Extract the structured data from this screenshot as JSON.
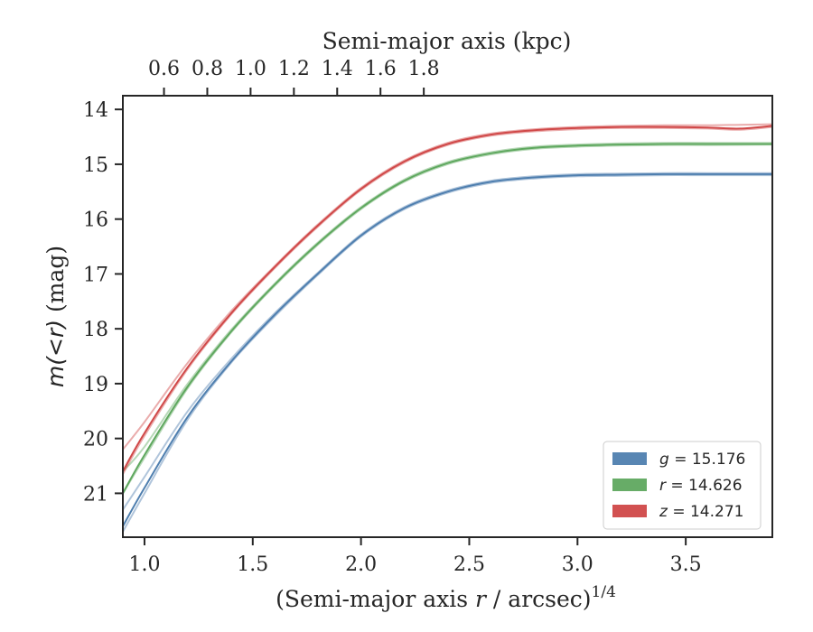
{
  "chart_data": {
    "type": "line",
    "title": "",
    "xlabel": "(Semi-major axis r / arcsec)^1/4",
    "xlabel_parts": {
      "prefix": "(Semi-major axis ",
      "var": "r",
      "suffix": " / arcsec)",
      "sup": "1/4"
    },
    "ylabel": "m(<r) (mag)",
    "ylabel_parts": {
      "math": "m(<r)",
      "unit": " (mag)"
    },
    "x2label": "Semi-major axis (kpc)",
    "xlim": [
      0.9,
      3.9
    ],
    "ylim": [
      21.8,
      13.75
    ],
    "y_inverted": true,
    "x2_ticks": [
      0.6,
      0.8,
      1.0,
      1.2,
      1.4,
      1.6,
      1.8
    ],
    "x2_tick_labels": [
      "0.6",
      "0.8",
      "1.0",
      "1.2",
      "1.4",
      "1.6",
      "1.8"
    ],
    "x2_to_x": [
      [
        0.6,
        1.09
      ],
      [
        0.8,
        1.29
      ],
      [
        1.0,
        1.49
      ],
      [
        1.2,
        1.69
      ],
      [
        1.4,
        1.89
      ],
      [
        1.6,
        2.09
      ],
      [
        1.8,
        2.29
      ]
    ],
    "x_ticks": [
      1.0,
      1.5,
      2.0,
      2.5,
      3.0,
      3.5
    ],
    "x_tick_labels": [
      "1.0",
      "1.5",
      "2.0",
      "2.5",
      "3.0",
      "3.5"
    ],
    "y_ticks": [
      14,
      15,
      16,
      17,
      18,
      19,
      20,
      21
    ],
    "y_tick_labels": [
      "14",
      "15",
      "16",
      "17",
      "18",
      "19",
      "20",
      "21"
    ],
    "grid": false,
    "legend_position": "lower-right",
    "series": [
      {
        "name": "g = 15.176",
        "legend": {
          "var": "g",
          "value": "15.176"
        },
        "color": "#4f7faf",
        "x": [
          0.9,
          1.0,
          1.2,
          1.4,
          1.6,
          1.8,
          2.0,
          2.2,
          2.4,
          2.6,
          2.8,
          3.0,
          3.2,
          3.4,
          3.6,
          3.9
        ],
        "y": [
          21.6,
          20.9,
          19.6,
          18.6,
          17.75,
          17.0,
          16.3,
          15.8,
          15.5,
          15.32,
          15.24,
          15.2,
          15.19,
          15.18,
          15.18,
          15.18
        ],
        "y_lower": [
          21.7,
          21.0,
          19.65,
          18.62,
          17.78,
          17.02,
          16.32,
          15.82,
          15.52,
          15.34,
          15.26,
          15.22,
          15.21,
          15.2,
          15.2,
          15.2
        ],
        "y_upper": [
          21.3,
          20.7,
          19.5,
          18.55,
          17.72,
          16.98,
          16.28,
          15.78,
          15.48,
          15.3,
          15.22,
          15.18,
          15.17,
          15.16,
          15.16,
          15.16
        ]
      },
      {
        "name": "r = 14.626",
        "legend": {
          "var": "r",
          "value": "14.626"
        },
        "color": "#5fa85f",
        "x": [
          0.9,
          1.0,
          1.2,
          1.4,
          1.6,
          1.8,
          2.0,
          2.2,
          2.4,
          2.6,
          2.8,
          3.0,
          3.2,
          3.4,
          3.6,
          3.9
        ],
        "y": [
          21.0,
          20.3,
          19.05,
          18.05,
          17.2,
          16.45,
          15.8,
          15.3,
          14.98,
          14.8,
          14.7,
          14.66,
          14.64,
          14.63,
          14.63,
          14.63
        ],
        "y_lower": [
          21.0,
          20.35,
          19.08,
          18.07,
          17.22,
          16.47,
          15.82,
          15.32,
          15.0,
          14.82,
          14.72,
          14.68,
          14.66,
          14.65,
          14.65,
          14.64
        ],
        "y_upper": [
          20.6,
          20.15,
          19.0,
          18.02,
          17.18,
          16.43,
          15.78,
          15.28,
          14.96,
          14.78,
          14.68,
          14.64,
          14.62,
          14.61,
          14.61,
          14.61
        ]
      },
      {
        "name": "z = 14.271",
        "legend": {
          "var": "z",
          "value": "14.271"
        },
        "color": "#d04848",
        "x": [
          0.9,
          1.0,
          1.2,
          1.4,
          1.6,
          1.8,
          2.0,
          2.2,
          2.4,
          2.6,
          2.8,
          3.0,
          3.2,
          3.4,
          3.6,
          3.75,
          3.9
        ],
        "y": [
          20.6,
          19.9,
          18.7,
          17.72,
          16.88,
          16.12,
          15.45,
          14.95,
          14.63,
          14.46,
          14.38,
          14.34,
          14.32,
          14.32,
          14.33,
          14.35,
          14.3
        ],
        "y_lower": [
          20.65,
          19.95,
          18.73,
          17.74,
          16.9,
          16.14,
          15.47,
          14.97,
          14.65,
          14.48,
          14.4,
          14.36,
          14.34,
          14.34,
          14.35,
          14.37,
          14.32
        ],
        "y_upper": [
          20.2,
          19.7,
          18.62,
          17.68,
          16.86,
          16.1,
          15.43,
          14.93,
          14.61,
          14.44,
          14.36,
          14.32,
          14.3,
          14.29,
          14.29,
          14.28,
          14.27
        ]
      }
    ]
  }
}
